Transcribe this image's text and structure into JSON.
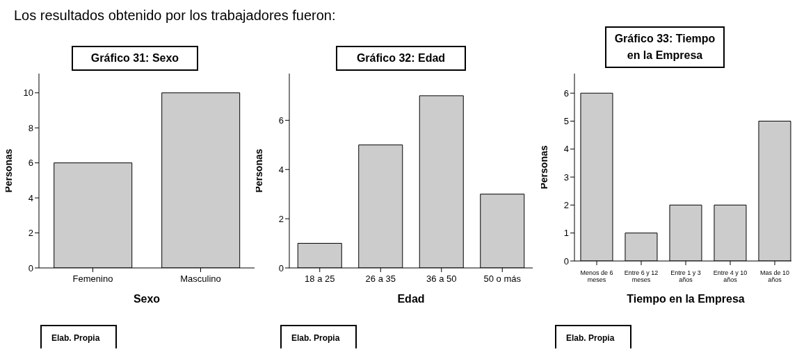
{
  "chart_data": [
    {
      "type": "bar",
      "title": "Gráfico 31: Sexo",
      "xlabel": "Sexo",
      "ylabel": "Personas",
      "categories": [
        "Femenino",
        "Masculino"
      ],
      "values": [
        6,
        10
      ],
      "color": "#cccccc",
      "ylim": [
        0,
        11.1
      ],
      "yticks": [
        0,
        2,
        4,
        6,
        8,
        10
      ],
      "grid": false,
      "annotations": [
        "Los resultados obtenido por los trabajadores fueron:",
        "Elab. Propia"
      ]
    },
    {
      "type": "bar",
      "title": "Gráfico 32: Edad",
      "xlabel": "Edad",
      "ylabel": "Personas",
      "categories": [
        "18 a 25",
        "26 a 35",
        "36 a 50",
        "50 o más"
      ],
      "values": [
        1,
        5,
        7,
        3
      ],
      "color": "#cccccc",
      "ylim": [
        0,
        7.9
      ],
      "yticks": [
        0,
        2,
        4,
        6
      ],
      "grid": false,
      "annotations": [
        "Elab. Propia"
      ]
    },
    {
      "type": "bar",
      "title": "Gráfico 33: Tiempo en la Empresa",
      "xlabel": "Tiempo en la Empresa",
      "ylabel": "Personas",
      "categories": [
        "Menos de 6 meses",
        "Entre 6 y 12 meses",
        "Entre 1 y 3 años",
        "Entre 4 y 10 años",
        "Mas de 10 años"
      ],
      "values": [
        6,
        1,
        2,
        2,
        5
      ],
      "color": "#cccccc",
      "ylim": [
        0,
        6.7
      ],
      "yticks": [
        0,
        1,
        2,
        3,
        4,
        5,
        6
      ],
      "grid": false,
      "annotations": [
        "Elab. Propia"
      ]
    }
  ]
}
